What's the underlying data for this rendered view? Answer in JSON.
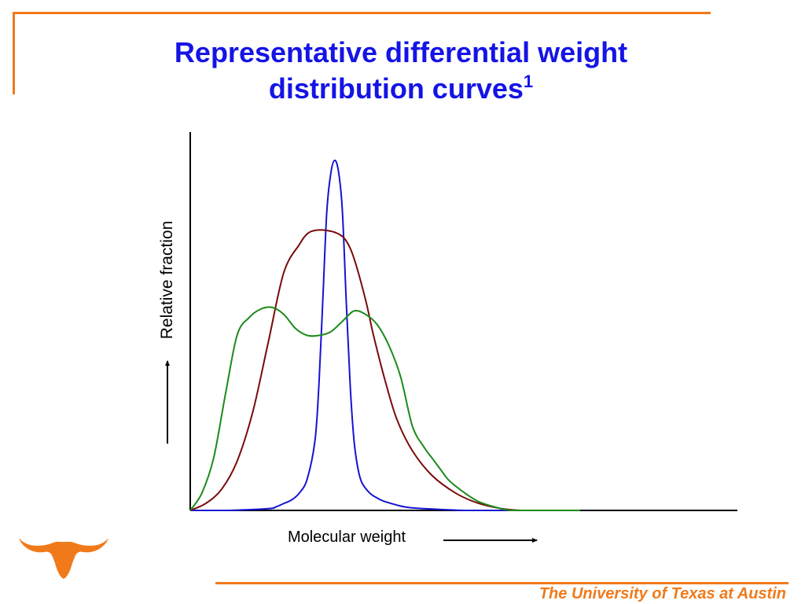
{
  "slide": {
    "title_text": "Representative differential weight distribution curves",
    "title_superscript": "1",
    "footer": "The University of Texas at Austin",
    "logo_icon": "longhorn-logo-icon"
  },
  "colors": {
    "accent": "#f07a1a",
    "title": "#1414e6",
    "axis": "#000000",
    "narrow": "#1414d2",
    "medium": "#7a0a0a",
    "broad": "#1a8a1a"
  },
  "chart_data": {
    "type": "line",
    "title": "",
    "xlabel": "Molecular weight",
    "ylabel": "Relative fraction",
    "xlim": [
      0,
      100
    ],
    "ylim": [
      0,
      100
    ],
    "grid": false,
    "legend": "none",
    "ticks": "none",
    "series": [
      {
        "color": "#1414d2",
        "x": [
          0,
          10,
          20,
          22,
          24,
          26,
          28,
          30,
          32,
          33,
          34,
          35,
          36,
          37,
          38,
          39,
          40,
          41,
          42,
          43,
          44,
          46,
          48,
          50,
          55,
          60,
          70,
          80,
          100
        ],
        "y": [
          0,
          0,
          0.5,
          1,
          2,
          3,
          5,
          9,
          20,
          36,
          60,
          85,
          96,
          100,
          97,
          86,
          60,
          36,
          20,
          12,
          8,
          5,
          3.5,
          2.5,
          1,
          0.5,
          0,
          0,
          0
        ]
      },
      {
        "color": "#7a0a0a",
        "x": [
          0,
          4,
          8,
          12,
          16,
          20,
          24,
          28,
          30,
          32,
          35,
          38,
          40,
          42,
          45,
          47,
          50,
          53,
          57,
          62,
          68,
          74,
          80,
          85,
          90,
          100
        ],
        "y": [
          0,
          2,
          6,
          14,
          28,
          48,
          68,
          76,
          79,
          80,
          80,
          79,
          77,
          72,
          60,
          50,
          37,
          26,
          17,
          10,
          5,
          2,
          0.5,
          0,
          0,
          0
        ]
      },
      {
        "color": "#1a8a1a",
        "x": [
          0,
          3,
          6,
          9,
          12,
          15,
          18,
          21,
          24,
          27,
          30,
          33,
          36,
          39,
          42,
          45,
          48,
          51,
          54,
          57,
          60,
          62,
          64,
          66,
          68,
          71,
          74,
          78,
          82,
          85,
          90,
          100
        ],
        "y": [
          0,
          5,
          15,
          33,
          50,
          55,
          57.5,
          58,
          56,
          52,
          50,
          50,
          51,
          54,
          57,
          56,
          53,
          47,
          38,
          24,
          18,
          15,
          12,
          9,
          7,
          4.5,
          2.5,
          1,
          0,
          0,
          0,
          0
        ]
      }
    ]
  }
}
